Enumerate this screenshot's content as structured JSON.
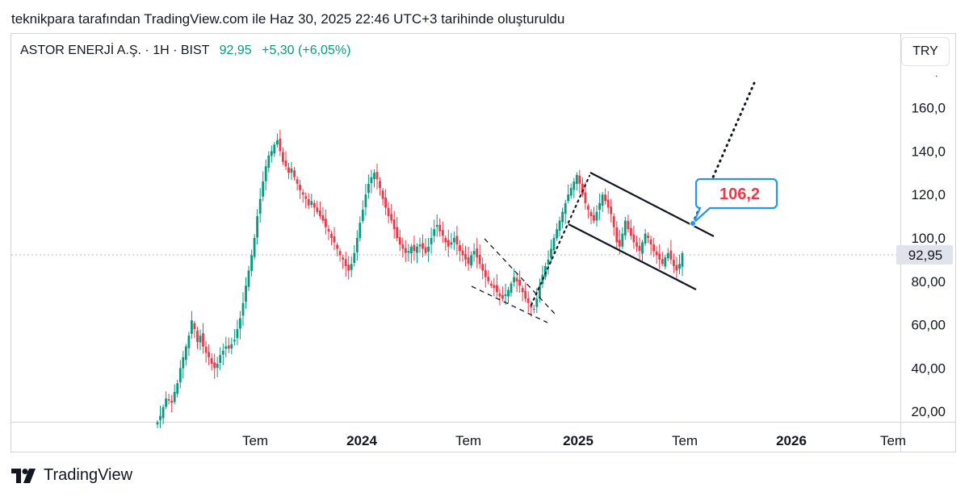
{
  "header": {
    "caption": "teknikpara tarafından TradingView.com ile Haz 30, 2025 22:46 UTC+3 tarihinde oluşturuldu"
  },
  "legend": {
    "symbol": "ASTOR ENERJİ A.Ş. · 1H · BIST",
    "price": "92,95",
    "change": "+5,30 (+6,05%)"
  },
  "currency_button": "TRY",
  "brand": {
    "name": "TradingView",
    "icon": "tradingview-logo-icon"
  },
  "colors": {
    "up": "#089981",
    "down": "#F23645",
    "callout": "#2196F3",
    "callout_text": "#F23645",
    "last_price_bg": "#e0e3eb"
  },
  "chart_data": {
    "type": "candlestick",
    "y_axis": {
      "ticks": [
        "20,00",
        "40,00",
        "60,00",
        "80,00",
        "100,0",
        "120,0",
        "140,0",
        "160,0"
      ],
      "ylim": [
        14,
        178
      ]
    },
    "x_axis": {
      "ticks": [
        {
          "label": "Tem",
          "bold": false
        },
        {
          "label": "2024",
          "bold": true
        },
        {
          "label": "Tem",
          "bold": false
        },
        {
          "label": "2025",
          "bold": true
        },
        {
          "label": "Tem",
          "bold": false
        },
        {
          "label": "2026",
          "bold": true
        },
        {
          "label": "Tem",
          "bold": false
        }
      ]
    },
    "last_price": {
      "value": 92.95,
      "label": "92,95"
    },
    "callout": {
      "label": "106,2",
      "value": 106.2
    },
    "closes": [
      15,
      18,
      22,
      26,
      25,
      24,
      29,
      33,
      40,
      45,
      50,
      55,
      62,
      58,
      52,
      55,
      50,
      47,
      45,
      42,
      40,
      42,
      46,
      48,
      50,
      49,
      51,
      53,
      58,
      63,
      70,
      78,
      85,
      92,
      100,
      110,
      118,
      126,
      133,
      138,
      140,
      143,
      145,
      140,
      135,
      133,
      130,
      132,
      128,
      125,
      122,
      120,
      118,
      115,
      117,
      114,
      112,
      110,
      108,
      105,
      103,
      100,
      98,
      95,
      92,
      90,
      87,
      85,
      88,
      93,
      100,
      107,
      113,
      120,
      125,
      128,
      130,
      127,
      123,
      118,
      114,
      110,
      108,
      104,
      100,
      97,
      95,
      93,
      94,
      96,
      94,
      96,
      97,
      95,
      93,
      96,
      100,
      104,
      106,
      103,
      101,
      98,
      96,
      98,
      100,
      97,
      94,
      92,
      90,
      88,
      92,
      94,
      91,
      88,
      85,
      82,
      80,
      78,
      77,
      75,
      73,
      72,
      74,
      76,
      79,
      82,
      80,
      78,
      75,
      72,
      70,
      68,
      67,
      72,
      78,
      83,
      87,
      90,
      95,
      100,
      104,
      108,
      112,
      116,
      120,
      123,
      126,
      129,
      125,
      120,
      116,
      113,
      110,
      108,
      112,
      116,
      120,
      117,
      114,
      111,
      105,
      98,
      96,
      102,
      108,
      104,
      101,
      98,
      96,
      94,
      98,
      102,
      100,
      97,
      94,
      92,
      90,
      88,
      91,
      93,
      90,
      87,
      85,
      88,
      92.95
    ]
  }
}
